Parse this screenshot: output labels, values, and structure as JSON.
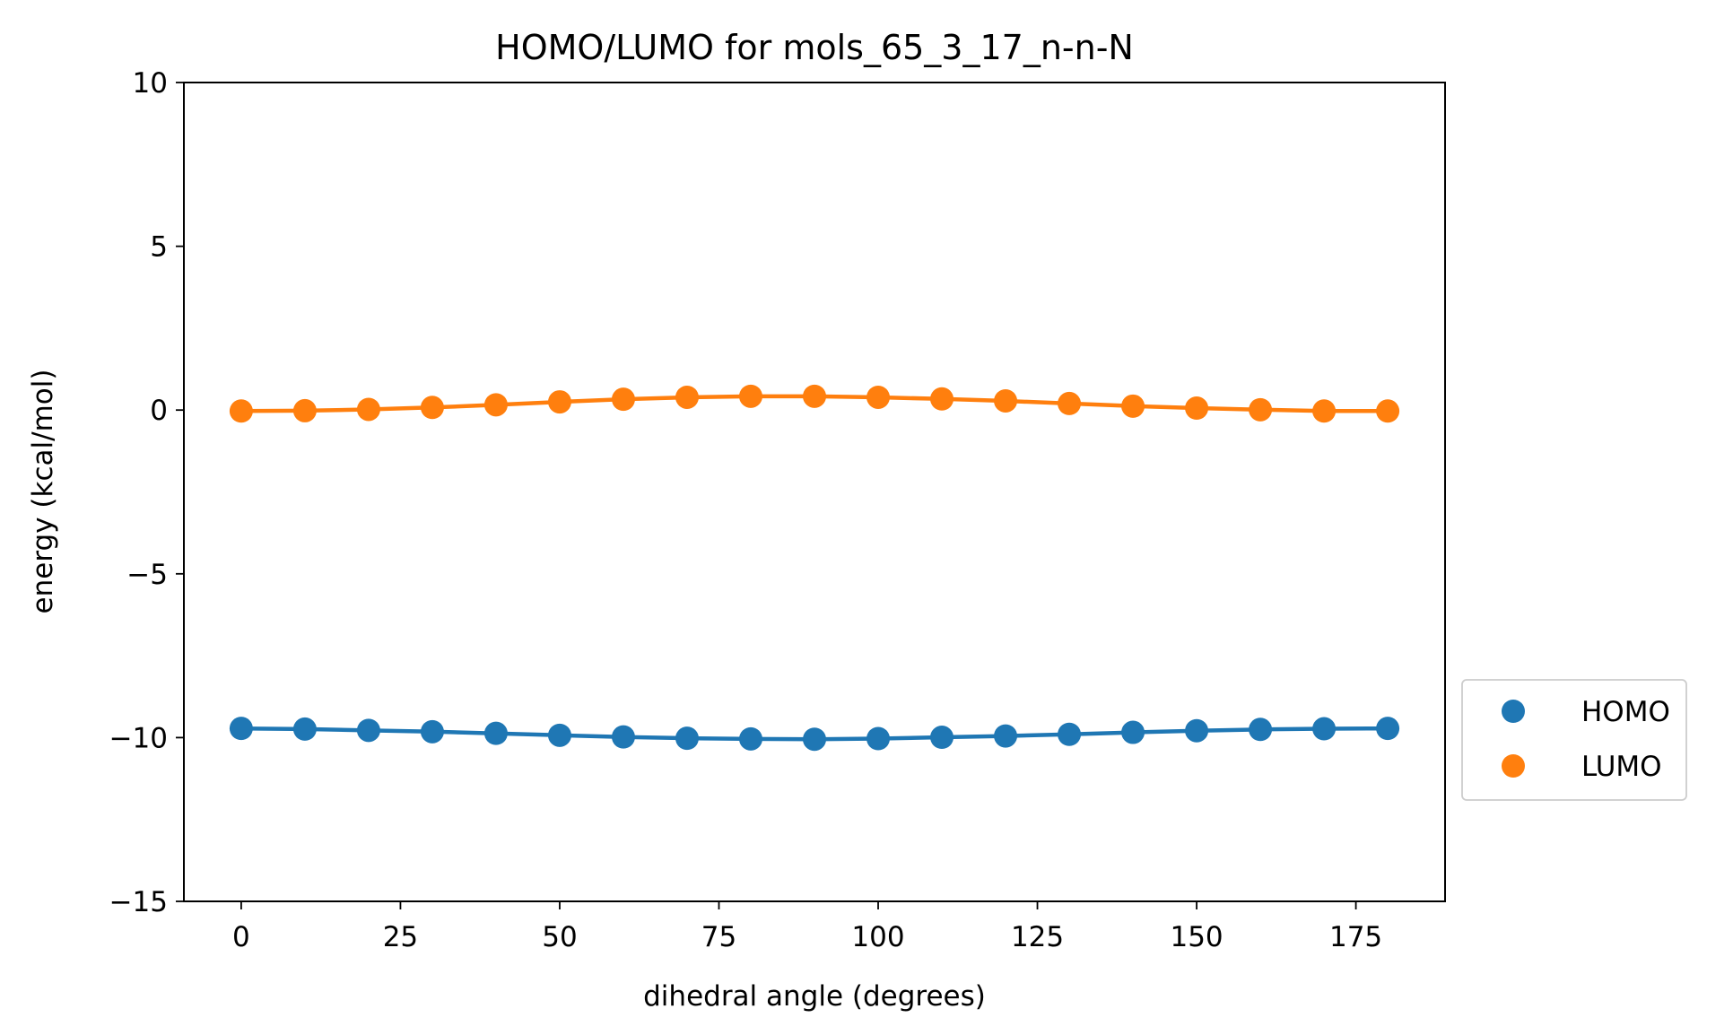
{
  "chart_data": {
    "type": "line",
    "title": "HOMO/LUMO for mols_65_3_17_n-n-N",
    "xlabel": "dihedral angle (degrees)",
    "ylabel": "energy (kcal/mol)",
    "xlim": [
      -9,
      189
    ],
    "ylim": [
      -15,
      10
    ],
    "x": [
      0,
      10,
      20,
      30,
      40,
      50,
      60,
      70,
      80,
      90,
      100,
      110,
      120,
      130,
      140,
      150,
      160,
      170,
      180
    ],
    "xticks": [
      0,
      25,
      50,
      75,
      100,
      125,
      150,
      175
    ],
    "yticks": [
      10,
      5,
      0,
      -5,
      -10,
      -15
    ],
    "xtick_labels": [
      "0",
      "25",
      "50",
      "75",
      "100",
      "125",
      "150",
      "175"
    ],
    "ytick_labels": [
      "10",
      "5",
      "0",
      "−5",
      "−10",
      "−15"
    ],
    "grid": false,
    "legend_position": "outside-right",
    "series": [
      {
        "name": "HOMO",
        "color": "#1f77b4",
        "values": [
          -9.72,
          -9.74,
          -9.78,
          -9.82,
          -9.87,
          -9.93,
          -9.98,
          -10.02,
          -10.04,
          -10.05,
          -10.03,
          -9.99,
          -9.95,
          -9.9,
          -9.84,
          -9.79,
          -9.75,
          -9.73,
          -9.72
        ]
      },
      {
        "name": "LUMO",
        "color": "#ff7f0e",
        "values": [
          -0.03,
          -0.02,
          0.02,
          0.08,
          0.16,
          0.25,
          0.33,
          0.39,
          0.42,
          0.42,
          0.39,
          0.34,
          0.28,
          0.2,
          0.12,
          0.06,
          0.01,
          -0.03,
          -0.03
        ]
      }
    ]
  }
}
